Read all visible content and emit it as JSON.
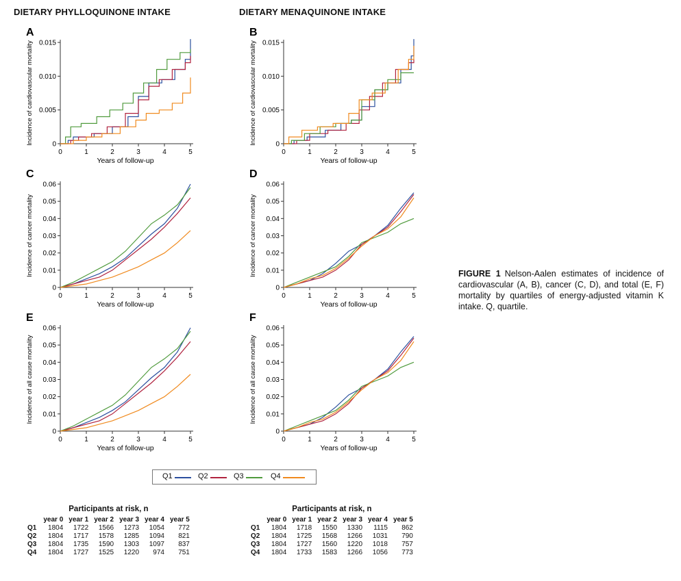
{
  "titles": {
    "left": "DIETARY PHYLLOQUINONE INTAKE",
    "right": "DIETARY MENAQUINONE INTAKE"
  },
  "caption": {
    "label": "FIGURE 1",
    "text": "Nelson-Aalen estimates of incidence of cardiovascular (A, B), cancer (C, D), and total (E, F) mortality by quartiles of energy-adjusted vitamin K intake. Q, quartile."
  },
  "colors": {
    "Q1": "#2b4f9e",
    "Q2": "#b0223e",
    "Q3": "#4f9a3c",
    "Q4": "#f08a1e"
  },
  "legend": [
    "Q1",
    "Q2",
    "Q3",
    "Q4"
  ],
  "chart_data": [
    {
      "panel": "A",
      "type": "line",
      "step": true,
      "xlabel": "Years of follow-up",
      "ylabel": "Incidence of cardiovascular mortality",
      "xlim": [
        0,
        5
      ],
      "ylim": [
        0,
        0.015
      ],
      "xticks": [
        "0",
        "1",
        "2",
        "3",
        "4",
        "5"
      ],
      "yticks": [
        "0",
        "0.005",
        "0.010",
        "0.015"
      ],
      "series": [
        {
          "name": "Q1",
          "x": [
            0,
            0.3,
            0.5,
            0.8,
            1.3,
            2.0,
            2.6,
            3.0,
            3.4,
            3.9,
            4.4,
            4.8,
            5.0
          ],
          "y": [
            0,
            0.0005,
            0.001,
            0.001,
            0.0015,
            0.0025,
            0.004,
            0.007,
            0.009,
            0.0095,
            0.011,
            0.0125,
            0.0155
          ]
        },
        {
          "name": "Q2",
          "x": [
            0,
            0.4,
            0.7,
            1.2,
            1.8,
            2.5,
            3.0,
            3.4,
            3.8,
            4.3,
            4.8,
            5.0
          ],
          "y": [
            0,
            0.0005,
            0.001,
            0.0015,
            0.0025,
            0.0045,
            0.0065,
            0.0085,
            0.0095,
            0.011,
            0.012,
            0.013
          ]
        },
        {
          "name": "Q3",
          "x": [
            0,
            0.2,
            0.4,
            0.8,
            1.4,
            1.9,
            2.4,
            2.8,
            3.2,
            3.7,
            4.1,
            4.6,
            5.0
          ],
          "y": [
            0,
            0.001,
            0.0025,
            0.003,
            0.004,
            0.005,
            0.006,
            0.0075,
            0.009,
            0.011,
            0.0125,
            0.0135,
            0.014
          ]
        },
        {
          "name": "Q4",
          "x": [
            0,
            0.5,
            1.0,
            1.6,
            2.3,
            2.9,
            3.3,
            3.8,
            4.3,
            4.7,
            5.0
          ],
          "y": [
            0,
            0.0005,
            0.001,
            0.0015,
            0.0025,
            0.0035,
            0.0045,
            0.005,
            0.006,
            0.0075,
            0.0098
          ]
        }
      ]
    },
    {
      "panel": "B",
      "type": "line",
      "step": true,
      "xlabel": "Years of follow-up",
      "ylabel": "Incidence of cardiovascular mortality",
      "xlim": [
        0,
        5
      ],
      "ylim": [
        0,
        0.015
      ],
      "xticks": [
        "0",
        "1",
        "2",
        "3",
        "4",
        "5"
      ],
      "yticks": [
        "0",
        "0.005",
        "0.010",
        "0.015"
      ],
      "series": [
        {
          "name": "Q1",
          "x": [
            0,
            0.4,
            0.9,
            1.6,
            2.2,
            2.6,
            3.0,
            3.5,
            4.0,
            4.5,
            4.9,
            5.0
          ],
          "y": [
            0,
            0.0005,
            0.001,
            0.002,
            0.003,
            0.0035,
            0.0055,
            0.008,
            0.009,
            0.011,
            0.013,
            0.0155
          ]
        },
        {
          "name": "Q2",
          "x": [
            0,
            0.5,
            1.0,
            1.7,
            2.4,
            2.9,
            3.3,
            3.8,
            4.3,
            4.8,
            5.0
          ],
          "y": [
            0,
            0.0005,
            0.0015,
            0.002,
            0.003,
            0.005,
            0.007,
            0.009,
            0.011,
            0.012,
            0.0125
          ]
        },
        {
          "name": "Q3",
          "x": [
            0,
            0.3,
            0.8,
            1.4,
            2.0,
            2.6,
            3.0,
            3.5,
            4.0,
            4.5,
            5.0
          ],
          "y": [
            0,
            0.0005,
            0.0015,
            0.0025,
            0.003,
            0.0035,
            0.0065,
            0.008,
            0.0095,
            0.0105,
            0.0105
          ]
        },
        {
          "name": "Q4",
          "x": [
            0,
            0.2,
            0.7,
            1.3,
            1.9,
            2.5,
            2.9,
            3.4,
            3.9,
            4.4,
            4.8,
            5.0
          ],
          "y": [
            0,
            0.001,
            0.002,
            0.0025,
            0.003,
            0.0045,
            0.0065,
            0.0075,
            0.009,
            0.011,
            0.0125,
            0.0145
          ]
        }
      ]
    },
    {
      "panel": "C",
      "type": "line",
      "xlabel": "Years of follow-up",
      "ylabel": "Incidence of cancer mortality",
      "xlim": [
        0,
        5
      ],
      "ylim": [
        0,
        0.06
      ],
      "xticks": [
        "0",
        "1",
        "2",
        "3",
        "4",
        "5"
      ],
      "yticks": [
        "0",
        "0.01",
        "0.02",
        "0.03",
        "0.04",
        "0.05",
        "0.06"
      ],
      "series": [
        {
          "name": "Q1",
          "x": [
            0,
            0.5,
            1.0,
            1.5,
            2.0,
            2.5,
            3.0,
            3.5,
            4.0,
            4.5,
            5.0
          ],
          "y": [
            0,
            0.002,
            0.005,
            0.008,
            0.012,
            0.017,
            0.024,
            0.031,
            0.037,
            0.046,
            0.06
          ]
        },
        {
          "name": "Q2",
          "x": [
            0,
            0.5,
            1.0,
            1.5,
            2.0,
            2.5,
            3.0,
            3.5,
            4.0,
            4.5,
            5.0
          ],
          "y": [
            0,
            0.002,
            0.004,
            0.006,
            0.01,
            0.016,
            0.022,
            0.028,
            0.035,
            0.043,
            0.052
          ]
        },
        {
          "name": "Q3",
          "x": [
            0,
            0.5,
            1.0,
            1.5,
            2.0,
            2.5,
            3.0,
            3.5,
            4.0,
            4.5,
            5.0
          ],
          "y": [
            0,
            0.003,
            0.007,
            0.011,
            0.015,
            0.021,
            0.029,
            0.037,
            0.042,
            0.048,
            0.058
          ]
        },
        {
          "name": "Q4",
          "x": [
            0,
            0.5,
            1.0,
            1.5,
            2.0,
            2.5,
            3.0,
            3.5,
            4.0,
            4.5,
            5.0
          ],
          "y": [
            0,
            0.001,
            0.002,
            0.004,
            0.006,
            0.009,
            0.012,
            0.016,
            0.02,
            0.026,
            0.033
          ]
        }
      ]
    },
    {
      "panel": "D",
      "type": "line",
      "xlabel": "Years of follow-up",
      "ylabel": "Incidence of cancer mortality",
      "xlim": [
        0,
        5
      ],
      "ylim": [
        0,
        0.06
      ],
      "xticks": [
        "0",
        "1",
        "2",
        "3",
        "4",
        "5"
      ],
      "yticks": [
        "0",
        "0.01",
        "0.02",
        "0.03",
        "0.04",
        "0.05",
        "0.06"
      ],
      "series": [
        {
          "name": "Q1",
          "x": [
            0,
            0.5,
            1.0,
            1.5,
            2.0,
            2.5,
            3.0,
            3.5,
            4.0,
            4.5,
            5.0
          ],
          "y": [
            0,
            0.002,
            0.004,
            0.008,
            0.014,
            0.021,
            0.025,
            0.03,
            0.036,
            0.046,
            0.055
          ]
        },
        {
          "name": "Q2",
          "x": [
            0,
            0.5,
            1.0,
            1.5,
            2.0,
            2.5,
            3.0,
            3.5,
            4.0,
            4.5,
            5.0
          ],
          "y": [
            0,
            0.002,
            0.004,
            0.006,
            0.01,
            0.016,
            0.025,
            0.03,
            0.035,
            0.044,
            0.054
          ]
        },
        {
          "name": "Q3",
          "x": [
            0,
            0.5,
            1.0,
            1.5,
            2.0,
            2.5,
            3.0,
            3.5,
            4.0,
            4.5,
            5.0
          ],
          "y": [
            0,
            0.003,
            0.006,
            0.009,
            0.012,
            0.018,
            0.026,
            0.029,
            0.032,
            0.037,
            0.04
          ]
        },
        {
          "name": "Q4",
          "x": [
            0,
            0.5,
            1.0,
            1.5,
            2.0,
            2.5,
            3.0,
            3.5,
            4.0,
            4.5,
            5.0
          ],
          "y": [
            0,
            0.002,
            0.005,
            0.007,
            0.011,
            0.017,
            0.024,
            0.03,
            0.034,
            0.041,
            0.052
          ]
        }
      ]
    },
    {
      "panel": "E",
      "type": "line",
      "xlabel": "Years of follow-up",
      "ylabel": "Incidence of all cause mortality",
      "xlim": [
        0,
        5
      ],
      "ylim": [
        0,
        0.06
      ],
      "xticks": [
        "0",
        "1",
        "2",
        "3",
        "4",
        "5"
      ],
      "yticks": [
        "0",
        "0.01",
        "0.02",
        "0.03",
        "0.04",
        "0.05",
        "0.06"
      ],
      "series": [
        {
          "name": "Q1",
          "x": [
            0,
            0.5,
            1.0,
            1.5,
            2.0,
            2.5,
            3.0,
            3.5,
            4.0,
            4.5,
            5.0
          ],
          "y": [
            0,
            0.002,
            0.005,
            0.008,
            0.012,
            0.017,
            0.024,
            0.031,
            0.037,
            0.046,
            0.06
          ]
        },
        {
          "name": "Q2",
          "x": [
            0,
            0.5,
            1.0,
            1.5,
            2.0,
            2.5,
            3.0,
            3.5,
            4.0,
            4.5,
            5.0
          ],
          "y": [
            0,
            0.002,
            0.004,
            0.006,
            0.01,
            0.016,
            0.022,
            0.028,
            0.035,
            0.043,
            0.052
          ]
        },
        {
          "name": "Q3",
          "x": [
            0,
            0.5,
            1.0,
            1.5,
            2.0,
            2.5,
            3.0,
            3.5,
            4.0,
            4.5,
            5.0
          ],
          "y": [
            0,
            0.003,
            0.007,
            0.011,
            0.015,
            0.021,
            0.029,
            0.037,
            0.042,
            0.048,
            0.058
          ]
        },
        {
          "name": "Q4",
          "x": [
            0,
            0.5,
            1.0,
            1.5,
            2.0,
            2.5,
            3.0,
            3.5,
            4.0,
            4.5,
            5.0
          ],
          "y": [
            0,
            0.001,
            0.002,
            0.004,
            0.006,
            0.009,
            0.012,
            0.016,
            0.02,
            0.026,
            0.033
          ]
        }
      ]
    },
    {
      "panel": "F",
      "type": "line",
      "xlabel": "Years of follow-up",
      "ylabel": "Incidence of all cause mortality",
      "xlim": [
        0,
        5
      ],
      "ylim": [
        0,
        0.06
      ],
      "xticks": [
        "0",
        "1",
        "2",
        "3",
        "4",
        "5"
      ],
      "yticks": [
        "0",
        "0.01",
        "0.02",
        "0.03",
        "0.04",
        "0.05",
        "0.06"
      ],
      "series": [
        {
          "name": "Q1",
          "x": [
            0,
            0.5,
            1.0,
            1.5,
            2.0,
            2.5,
            3.0,
            3.5,
            4.0,
            4.5,
            5.0
          ],
          "y": [
            0,
            0.002,
            0.004,
            0.008,
            0.014,
            0.021,
            0.025,
            0.03,
            0.036,
            0.046,
            0.055
          ]
        },
        {
          "name": "Q2",
          "x": [
            0,
            0.5,
            1.0,
            1.5,
            2.0,
            2.5,
            3.0,
            3.5,
            4.0,
            4.5,
            5.0
          ],
          "y": [
            0,
            0.002,
            0.004,
            0.006,
            0.01,
            0.016,
            0.025,
            0.03,
            0.035,
            0.044,
            0.054
          ]
        },
        {
          "name": "Q3",
          "x": [
            0,
            0.5,
            1.0,
            1.5,
            2.0,
            2.5,
            3.0,
            3.5,
            4.0,
            4.5,
            5.0
          ],
          "y": [
            0,
            0.003,
            0.006,
            0.009,
            0.012,
            0.018,
            0.026,
            0.029,
            0.032,
            0.037,
            0.04
          ]
        },
        {
          "name": "Q4",
          "x": [
            0,
            0.5,
            1.0,
            1.5,
            2.0,
            2.5,
            3.0,
            3.5,
            4.0,
            4.5,
            5.0
          ],
          "y": [
            0,
            0.002,
            0.005,
            0.007,
            0.011,
            0.017,
            0.024,
            0.03,
            0.034,
            0.041,
            0.052
          ]
        }
      ]
    }
  ],
  "risk_tables": [
    {
      "title": "Participants at risk, n",
      "columns": [
        "",
        "year 0",
        "year 1",
        "year 2",
        "year 3",
        "year 4",
        "year 5"
      ],
      "rows": [
        [
          "Q1",
          "1804",
          "1722",
          "1566",
          "1273",
          "1054",
          "772"
        ],
        [
          "Q2",
          "1804",
          "1717",
          "1578",
          "1285",
          "1094",
          "821"
        ],
        [
          "Q3",
          "1804",
          "1735",
          "1590",
          "1303",
          "1097",
          "837"
        ],
        [
          "Q4",
          "1804",
          "1727",
          "1525",
          "1220",
          "974",
          "751"
        ]
      ]
    },
    {
      "title": "Participants at risk, n",
      "columns": [
        "",
        "year 0",
        "year 1",
        "year 2",
        "year 3",
        "year 4",
        "year 5"
      ],
      "rows": [
        [
          "Q1",
          "1804",
          "1718",
          "1550",
          "1330",
          "1115",
          "862"
        ],
        [
          "Q2",
          "1804",
          "1725",
          "1568",
          "1266",
          "1031",
          "790"
        ],
        [
          "Q3",
          "1804",
          "1727",
          "1560",
          "1220",
          "1018",
          "757"
        ],
        [
          "Q4",
          "1804",
          "1733",
          "1583",
          "1266",
          "1056",
          "773"
        ]
      ]
    }
  ]
}
